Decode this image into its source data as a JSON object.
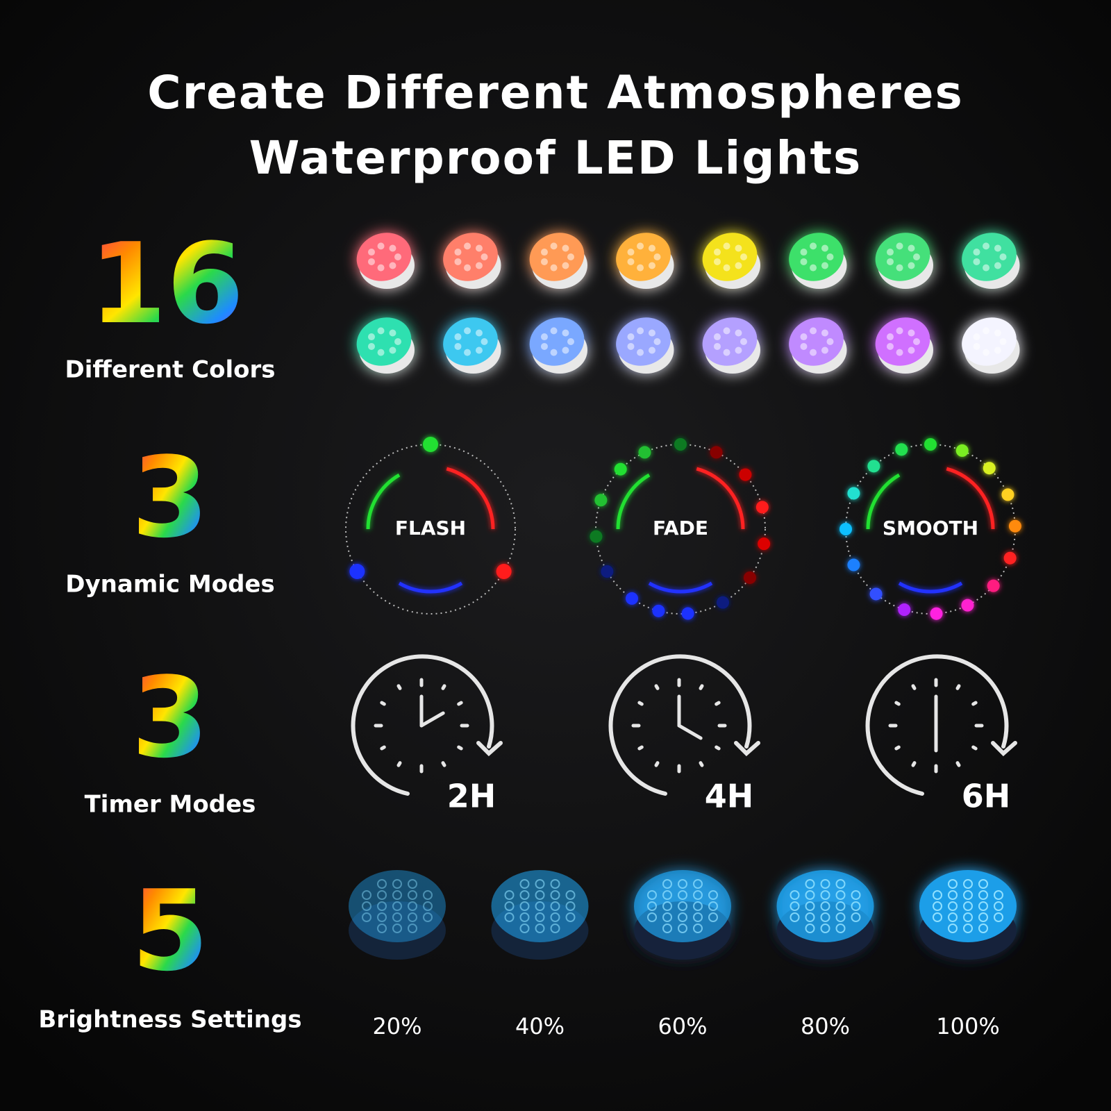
{
  "header": {
    "title_lines": [
      "Create Different Atmospheres",
      "Waterproof LED Lights"
    ]
  },
  "sections": [
    {
      "number": "16",
      "label": "Different Colors"
    },
    {
      "number": "3",
      "label": "Dynamic Modes",
      "items": [
        "FLASH",
        "FADE",
        "SMOOTH"
      ]
    },
    {
      "number": "3",
      "label": "Timer Modes",
      "items": [
        "2H",
        "4H",
        "6H"
      ]
    },
    {
      "number": "5",
      "label": "Brightness Settings",
      "items": [
        "20%",
        "40%",
        "60%",
        "80%",
        "100%"
      ]
    }
  ]
}
